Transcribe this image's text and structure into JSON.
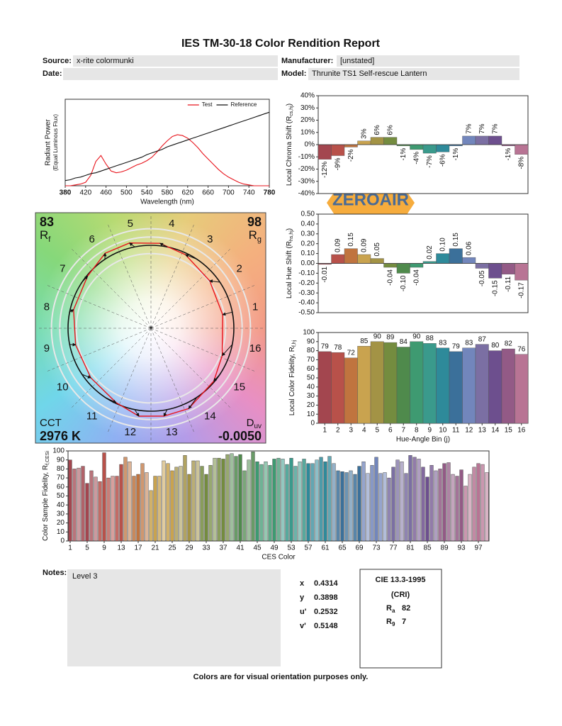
{
  "title": "IES TM-30-18 Color Rendition Report",
  "header": {
    "source_label": "Source:",
    "source": "x-rite colormunki",
    "manufacturer_label": "Manufacturer:",
    "manufacturer": "[unstated]",
    "date_label": "Date:",
    "model_label": "Model:",
    "model": "Thrunite TS1 Self-rescue Lantern"
  },
  "watermark": "ZEROAIR",
  "chart_data": [
    {
      "type": "line",
      "xlabel": "Wavelength (nm)",
      "ylabel": "Radiant Power",
      "ylabel_note": "(Equal Luminous Flux)",
      "x": [
        380,
        390,
        400,
        410,
        420,
        430,
        440,
        450,
        460,
        470,
        480,
        490,
        500,
        510,
        520,
        530,
        540,
        550,
        560,
        570,
        580,
        590,
        600,
        610,
        620,
        630,
        640,
        650,
        660,
        670,
        680,
        690,
        700,
        710,
        720,
        730,
        740,
        750,
        760,
        770,
        780
      ],
      "series": [
        {
          "name": "Test",
          "color": "#e8141c",
          "values": [
            0,
            0,
            0.01,
            0.02,
            0.04,
            0.12,
            0.28,
            0.35,
            0.25,
            0.17,
            0.15,
            0.16,
            0.18,
            0.21,
            0.24,
            0.26,
            0.29,
            0.33,
            0.39,
            0.46,
            0.52,
            0.57,
            0.59,
            0.58,
            0.55,
            0.5,
            0.44,
            0.37,
            0.31,
            0.25,
            0.19,
            0.14,
            0.1,
            0.07,
            0.04,
            0.02,
            0.01,
            0,
            0,
            0,
            0
          ]
        },
        {
          "name": "Reference",
          "color": "#111111",
          "values": [
            0.06,
            0.07,
            0.09,
            0.1,
            0.12,
            0.14,
            0.15,
            0.17,
            0.19,
            0.21,
            0.23,
            0.25,
            0.27,
            0.29,
            0.31,
            0.33,
            0.36,
            0.38,
            0.4,
            0.42,
            0.45,
            0.47,
            0.49,
            0.51,
            0.53,
            0.55,
            0.57,
            0.59,
            0.61,
            0.63,
            0.65,
            0.67,
            0.69,
            0.71,
            0.73,
            0.75,
            0.77,
            0.79,
            0.81,
            0.83,
            0.85
          ]
        }
      ],
      "xlim": [
        380,
        780
      ],
      "xticks": [
        380,
        420,
        460,
        500,
        540,
        580,
        620,
        660,
        700,
        740,
        780
      ],
      "ylim": [
        0,
        1
      ],
      "legend": "top-right"
    },
    {
      "type": "bar",
      "ylabel": {
        "text": "Local Chroma Shift (R",
        "subscript": "cs,hj",
        "suffix": ")"
      },
      "values": [
        -12,
        -9,
        -2,
        3,
        6,
        6,
        -1,
        -4,
        -7,
        -6,
        -1,
        7,
        7,
        7,
        -1,
        -8
      ],
      "value_labels": [
        "-12%",
        "-9%",
        "-2%",
        "3%",
        "6%",
        "6%",
        "-1%",
        "-4%",
        "-7%",
        "-6%",
        "-1%",
        "7%",
        "7%",
        "7%",
        "-1%",
        "-8%"
      ],
      "colors": [
        "#a3464f",
        "#b8514a",
        "#c0743f",
        "#c9a34f",
        "#a39345",
        "#748c3f",
        "#4f8a4c",
        "#3e9a71",
        "#3a9a8c",
        "#2e8a9a",
        "#3b709a",
        "#7286bc",
        "#7b6fa3",
        "#6d4f8e",
        "#935a86",
        "#b87494"
      ],
      "ylim": [
        -40,
        40
      ],
      "yticks": [
        {
          "value": 40,
          "label": "40%"
        },
        {
          "value": 30,
          "label": "30%"
        },
        {
          "value": 20,
          "label": "20%"
        },
        {
          "value": 10,
          "label": "10%"
        },
        {
          "value": 0,
          "label": "0%"
        },
        {
          "value": -10,
          "label": "-10%"
        },
        {
          "value": -20,
          "label": "-20%"
        },
        {
          "value": -30,
          "label": "-30%"
        },
        {
          "value": -40,
          "label": "-40%"
        }
      ]
    },
    {
      "type": "bar",
      "ylabel": {
        "text": "Local Hue Shift (R",
        "subscript": "hs,hj",
        "suffix": ")"
      },
      "values": [
        -0.01,
        0.09,
        0.15,
        0.09,
        0.05,
        -0.04,
        -0.1,
        -0.04,
        0.02,
        0.1,
        0.15,
        0.06,
        -0.05,
        -0.15,
        -0.11,
        -0.17
      ],
      "value_labels": [
        "-0.01",
        "0.09",
        "0.15",
        "0.09",
        "0.05",
        "-0.04",
        "-0.10",
        "-0.04",
        "0.02",
        "0.10",
        "0.15",
        "0.06",
        "-0.05",
        "-0.15",
        "-0.11",
        "-0.17"
      ],
      "colors": [
        "#a3464f",
        "#b8514a",
        "#c0743f",
        "#c9a34f",
        "#a39345",
        "#748c3f",
        "#4f8a4c",
        "#3e9a71",
        "#3a9a8c",
        "#2e8a9a",
        "#3b709a",
        "#7286bc",
        "#7b6fa3",
        "#6d4f8e",
        "#935a86",
        "#b87494"
      ],
      "ylim": [
        -0.5,
        0.5
      ],
      "yticks": [
        {
          "value": 0.5,
          "label": "0.50"
        },
        {
          "value": 0.4,
          "label": "0.40"
        },
        {
          "value": 0.3,
          "label": "0.30"
        },
        {
          "value": 0.2,
          "label": "0.20"
        },
        {
          "value": 0.1,
          "label": "0.10"
        },
        {
          "value": 0,
          "label": "0.00"
        },
        {
          "value": -0.1,
          "label": "-0.10"
        },
        {
          "value": -0.2,
          "label": "-0.20"
        },
        {
          "value": -0.3,
          "label": "-0.30"
        },
        {
          "value": -0.4,
          "label": "-0.40"
        },
        {
          "value": -0.5,
          "label": "-0.50"
        }
      ]
    },
    {
      "type": "bar",
      "xlabel": "Hue-Angle Bin (j)",
      "ylabel": {
        "text": "Local Color Fidelity, R",
        "subscript": "f,hj",
        "suffix": ""
      },
      "categories": [
        1,
        2,
        3,
        4,
        5,
        6,
        7,
        8,
        9,
        10,
        11,
        12,
        13,
        14,
        15,
        16
      ],
      "values": [
        79,
        78,
        72,
        85,
        90,
        89,
        84,
        90,
        88,
        83,
        79,
        83,
        87,
        80,
        82,
        76
      ],
      "colors": [
        "#a3464f",
        "#b8514a",
        "#c0743f",
        "#c9a34f",
        "#a39345",
        "#748c3f",
        "#4f8a4c",
        "#3e9a71",
        "#3a9a8c",
        "#2e8a9a",
        "#3b709a",
        "#7286bc",
        "#7b6fa3",
        "#6d4f8e",
        "#935a86",
        "#b87494"
      ],
      "ylim": [
        0,
        100
      ],
      "yticks": [
        0,
        10,
        20,
        30,
        40,
        50,
        60,
        70,
        80,
        90,
        100
      ]
    },
    {
      "type": "bar",
      "xlabel": "CES Color",
      "ylabel": {
        "text": "Color Sample Fidelity, R",
        "subscript": "f,CESi",
        "suffix": ""
      },
      "categories": [
        1,
        null,
        null,
        null,
        5,
        null,
        null,
        null,
        9,
        null,
        null,
        null,
        13,
        null,
        null,
        null,
        17,
        null,
        null,
        null,
        21,
        null,
        null,
        null,
        25,
        null,
        null,
        null,
        29,
        null,
        null,
        null,
        33,
        null,
        null,
        null,
        37,
        null,
        null,
        null,
        41,
        null,
        null,
        null,
        45,
        null,
        null,
        null,
        49,
        null,
        null,
        null,
        53,
        null,
        null,
        null,
        57,
        null,
        null,
        null,
        61,
        null,
        null,
        null,
        65,
        null,
        null,
        null,
        69,
        null,
        null,
        null,
        73,
        null,
        null,
        null,
        77,
        null,
        null,
        null,
        81,
        null,
        null,
        null,
        85,
        null,
        null,
        null,
        89,
        null,
        null,
        null,
        93,
        null,
        null,
        null,
        97,
        null,
        null
      ],
      "values": [
        90,
        80,
        81,
        83,
        64,
        78,
        71,
        66,
        98,
        70,
        72,
        72,
        85,
        93,
        88,
        72,
        74,
        86,
        76,
        56,
        72,
        72,
        89,
        86,
        78,
        82,
        83,
        95,
        74,
        89,
        89,
        83,
        74,
        84,
        92,
        92,
        91,
        96,
        97,
        94,
        96,
        78,
        90,
        99,
        88,
        85,
        88,
        84,
        91,
        92,
        91,
        85,
        92,
        83,
        88,
        91,
        86,
        86,
        90,
        93,
        88,
        94,
        86,
        78,
        77,
        76,
        78,
        74,
        83,
        88,
        75,
        84,
        93,
        75,
        76,
        70,
        82,
        90,
        88,
        75,
        95,
        93,
        91,
        82,
        71,
        84,
        78,
        80,
        86,
        87,
        74,
        72,
        79,
        61,
        74,
        82,
        86,
        85,
        76
      ],
      "ylim": [
        0,
        100
      ],
      "yticks": [
        0,
        10,
        20,
        30,
        40,
        50,
        60,
        70,
        80,
        90,
        100
      ]
    }
  ],
  "vector_graphic": {
    "rf": {
      "value": 83,
      "symbol": "R",
      "subscript": "f"
    },
    "rg": {
      "value": 98,
      "symbol": "R",
      "subscript": "g"
    },
    "cct_label": "CCT",
    "cct": "2976 K",
    "duv": {
      "symbol": "D",
      "subscript": "uv",
      "value": "-0.0050"
    }
  },
  "notes": {
    "label": "Notes:",
    "text": "Level 3"
  },
  "chromaticity": [
    {
      "label": "x",
      "value": 0.4314
    },
    {
      "label": "y",
      "value": 0.3898
    },
    {
      "label": "u'",
      "value": 0.2532
    },
    {
      "label": "v'",
      "value": 0.5148
    }
  ],
  "cie": {
    "title": "CIE 13.3-1995",
    "subtitle": "(CRI)",
    "ra": {
      "symbol": "R",
      "subscript": "a",
      "value": 82
    },
    "r9": {
      "symbol": "R",
      "subscript": "9",
      "value": 7
    }
  },
  "footer": "Colors are for visual orientation purposes only."
}
